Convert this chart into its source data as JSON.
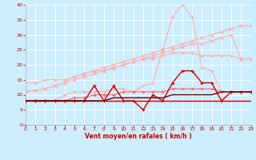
{
  "x": [
    0,
    1,
    2,
    3,
    4,
    5,
    6,
    7,
    8,
    9,
    10,
    11,
    12,
    13,
    14,
    15,
    16,
    17,
    18,
    19,
    20,
    21,
    22,
    23
  ],
  "line_configs": [
    {
      "yvals": [
        11,
        11.5,
        12,
        13,
        14,
        16,
        17,
        18,
        19,
        20,
        21,
        22,
        23,
        24,
        25,
        26,
        27,
        28,
        29,
        30,
        31,
        32,
        33,
        33
      ],
      "color": "#ffb0b0",
      "lw": 0.8,
      "marker": "x",
      "ms": 2.5
    },
    {
      "yvals": [
        11,
        11.5,
        12,
        13,
        14,
        15,
        16,
        17,
        18,
        19,
        20,
        21,
        22,
        23,
        24,
        25,
        26,
        27,
        27,
        28,
        29,
        30,
        22,
        22
      ],
      "color": "#ffb0b0",
      "lw": 0.8,
      "marker": "x",
      "ms": 2.5
    },
    {
      "yvals": [
        8,
        8,
        8,
        8,
        10,
        11,
        11,
        11,
        11,
        12,
        12,
        11,
        13,
        14,
        25,
        36,
        40,
        36,
        19,
        18,
        11,
        11,
        11,
        11
      ],
      "color": "#ffb0b0",
      "lw": 0.8,
      "marker": "+",
      "ms": 3
    },
    {
      "yvals": [
        14,
        14,
        15,
        15,
        15,
        16,
        17,
        18,
        18,
        19,
        20,
        21,
        22,
        22,
        23,
        24,
        24,
        24,
        23,
        23,
        23,
        23,
        22,
        22
      ],
      "color": "#ffb0b0",
      "lw": 0.8,
      "marker": "+",
      "ms": 3
    },
    {
      "yvals": [
        8,
        8,
        8,
        8,
        8,
        9,
        9,
        10,
        10,
        10,
        11,
        11,
        11,
        11,
        11,
        12,
        12,
        12,
        12,
        12,
        11,
        11,
        11,
        11
      ],
      "color": "#ff6666",
      "lw": 0.8,
      "marker": "+",
      "ms": 2.5
    },
    {
      "yvals": [
        8,
        8,
        8,
        8,
        8,
        8,
        8,
        13,
        8,
        13,
        8,
        8,
        5,
        10,
        8,
        14,
        18,
        18,
        14,
        14,
        8,
        11,
        11,
        11
      ],
      "color": "#cc0000",
      "lw": 1.0,
      "marker": "+",
      "ms": 3
    },
    {
      "yvals": [
        8,
        8,
        8,
        8,
        8,
        8,
        8,
        8,
        8,
        8,
        8,
        8,
        8,
        8,
        8,
        8,
        8,
        8,
        8,
        8,
        8,
        8,
        8,
        8
      ],
      "color": "#cc0000",
      "lw": 1.0,
      "marker": null,
      "ms": 0
    },
    {
      "yvals": [
        8,
        8,
        8,
        8,
        8,
        8,
        8,
        8,
        8,
        9,
        9,
        9,
        9,
        9,
        9,
        10,
        10,
        10,
        10,
        10,
        11,
        11,
        11,
        11
      ],
      "color": "#660000",
      "lw": 1.0,
      "marker": null,
      "ms": 0
    }
  ],
  "xlabel": "Vent moyen/en rafales ( km/h )",
  "xlim": [
    0,
    23
  ],
  "ylim": [
    0,
    40
  ],
  "yticks": [
    0,
    5,
    10,
    15,
    20,
    25,
    30,
    35,
    40
  ],
  "xticks": [
    0,
    1,
    2,
    3,
    4,
    5,
    6,
    7,
    8,
    9,
    10,
    11,
    12,
    13,
    14,
    15,
    16,
    17,
    18,
    19,
    20,
    21,
    22,
    23
  ],
  "bg_color": "#cceeff",
  "grid_color": "#ffffff",
  "tick_color": "#cc0000",
  "label_color": "#cc0000"
}
